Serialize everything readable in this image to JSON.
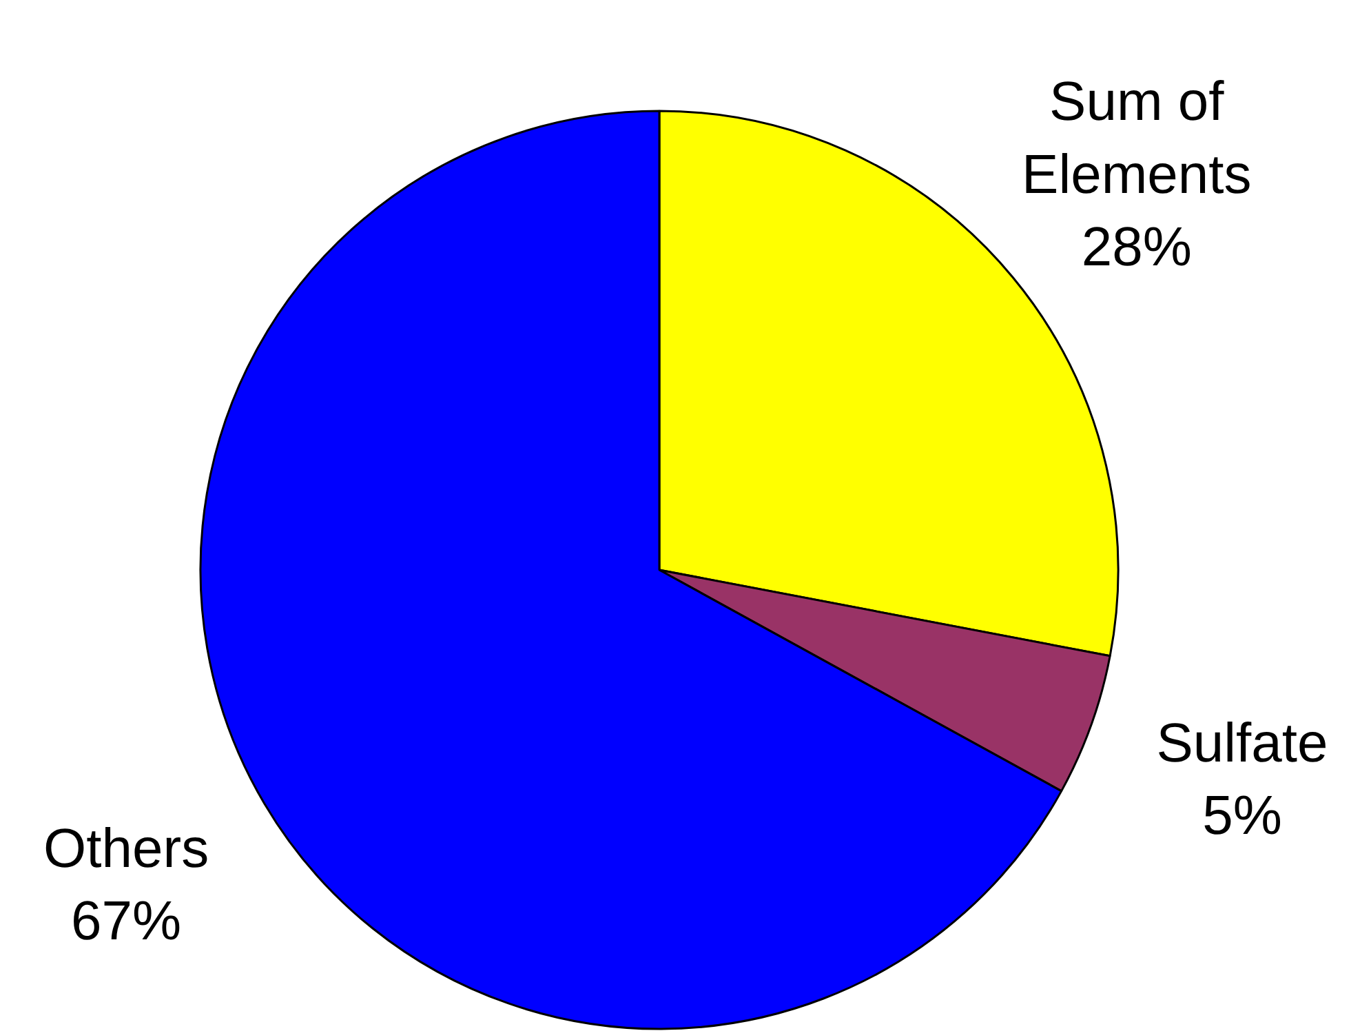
{
  "chart_data": {
    "type": "pie",
    "categories": [
      "Sum of Elements",
      "Sulfate",
      "Others"
    ],
    "values": [
      28,
      5,
      67
    ],
    "colors": [
      "#ffff00",
      "#993366",
      "#0000ff"
    ],
    "value_labels": [
      "28%",
      "5%",
      "67%"
    ]
  }
}
